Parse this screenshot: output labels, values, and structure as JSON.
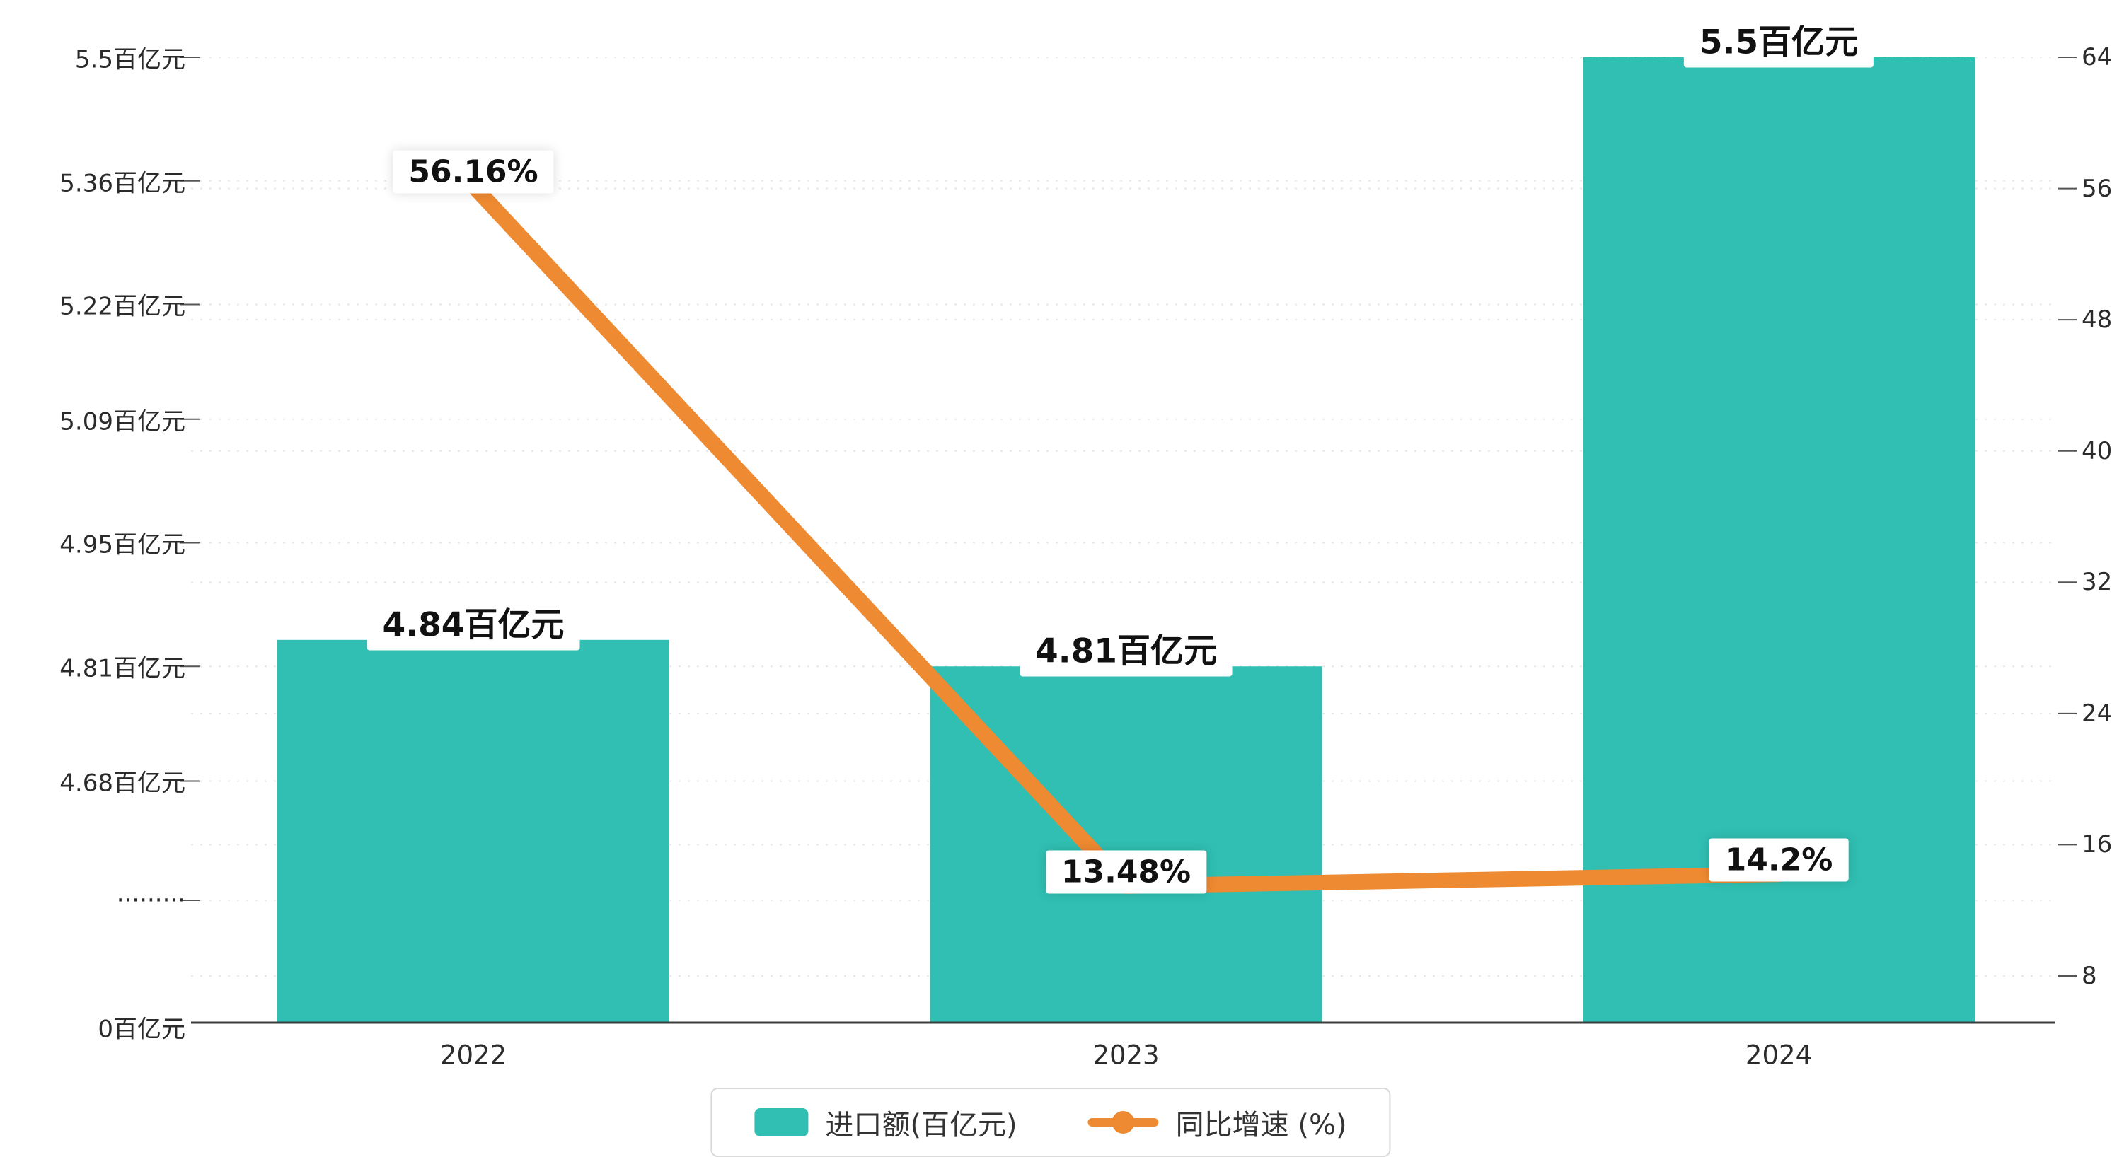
{
  "chart_data": {
    "type": "bar",
    "title": "",
    "categories": [
      "2022",
      "2023",
      "2024"
    ],
    "series": [
      {
        "name": "进口额(百亿元)",
        "type": "bar",
        "axis": "left",
        "color": "#30bfb2",
        "values": [
          4.84,
          4.81,
          5.5
        ],
        "labels": [
          "4.84百亿元",
          "4.81百亿元",
          "5.5百亿元"
        ]
      },
      {
        "name": "同比增速 (%)",
        "type": "line",
        "axis": "right",
        "color": "#ee8a31",
        "values": [
          56.16,
          13.48,
          14.2
        ],
        "labels": [
          "56.16%",
          "13.48%",
          "14.2%"
        ]
      }
    ],
    "left_axis": {
      "tick_labels": [
        "5.5百亿元",
        "5.36百亿元",
        "5.22百亿元",
        "5.09百亿元",
        "4.95百亿元",
        "4.81百亿元",
        "4.68百亿元",
        "·········",
        "0百亿元"
      ],
      "tick_values": [
        5.5,
        5.36,
        5.22,
        5.09,
        4.95,
        4.81,
        4.68,
        null,
        0
      ],
      "has_break": true
    },
    "right_axis": {
      "tick_labels": [
        "64",
        "56",
        "48",
        "40",
        "32",
        "24",
        "16",
        "8"
      ],
      "min": 8,
      "max": 64
    },
    "legend": {
      "position": "bottom",
      "items": [
        {
          "label": "进口额(百亿元)",
          "type": "bar",
          "color": "#30bfb2"
        },
        {
          "label": "同比增速 (%)",
          "type": "line",
          "color": "#ee8a31"
        }
      ]
    },
    "grid": {
      "horizontal_dashed": true,
      "color": "#e5e8ea",
      "axis_line_color": "#3c3c3c"
    }
  }
}
